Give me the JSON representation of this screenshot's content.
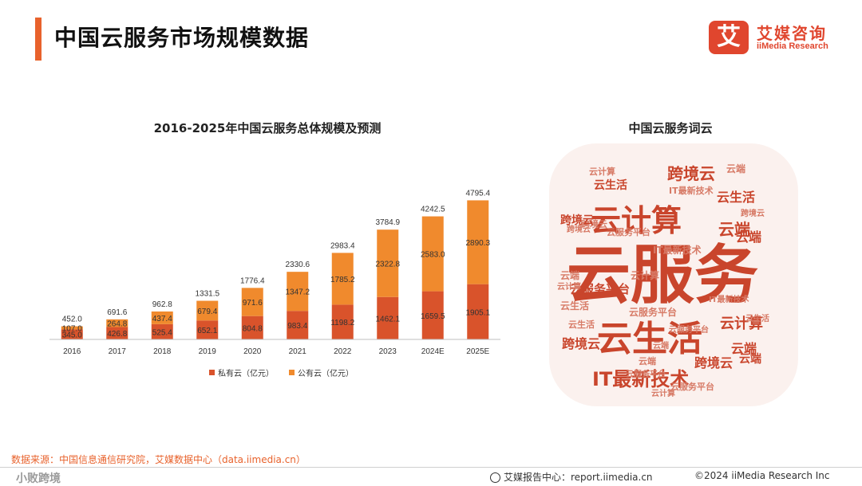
{
  "header": {
    "title": "中国云服务市场规模数据"
  },
  "logo": {
    "mark": "艾",
    "name_cn": "艾媒咨询",
    "name_en": "iiMedia Research"
  },
  "chart_title": "2016-2025年中国云服务总体规模及预测",
  "wordcloud_title": "中国云服务词云",
  "chart_data": {
    "type": "bar",
    "stacked": true,
    "title": "2016-2025年中国云服务总体规模及预测",
    "categories": [
      "2016",
      "2017",
      "2018",
      "2019",
      "2020",
      "2021",
      "2022",
      "2023",
      "2024E",
      "2025E"
    ],
    "series": [
      {
        "name": "私有云（亿元）",
        "color": "#d9532b",
        "values": [
          345.0,
          426.8,
          525.4,
          652.1,
          804.8,
          983.4,
          1198.2,
          1462.1,
          1659.5,
          1905.1
        ]
      },
      {
        "name": "公有云（亿元）",
        "color": "#f08a2d",
        "values": [
          107.0,
          264.8,
          437.4,
          679.4,
          971.6,
          1347.2,
          1785.2,
          2322.8,
          2583.0,
          2890.3
        ]
      }
    ],
    "totals": [
      452.0,
      691.6,
      962.8,
      1331.5,
      1776.4,
      2330.6,
      2983.4,
      3784.9,
      4242.5,
      4795.4
    ],
    "ylim": [
      0,
      5000
    ],
    "legend": "bottom"
  },
  "wordcloud": {
    "main_color": "#c9452c",
    "light_color": "#d77a66",
    "words": [
      {
        "text": "云服务",
        "size": 80
      },
      {
        "text": "云生活",
        "size": 44
      },
      {
        "text": "云计算",
        "size": 38
      },
      {
        "text": "IT最新技术",
        "size": 24
      },
      {
        "text": "跨境云",
        "size": 20
      },
      {
        "text": "云端",
        "size": 20
      },
      {
        "text": "云服务平台",
        "size": 15
      },
      {
        "text": "云计算",
        "size": 18
      },
      {
        "text": "云生活",
        "size": 16
      },
      {
        "text": "云端",
        "size": 16
      },
      {
        "text": "跨境云",
        "size": 16
      },
      {
        "text": "云计算",
        "size": 11
      },
      {
        "text": "云生活",
        "size": 14
      },
      {
        "text": "云端",
        "size": 12
      },
      {
        "text": "跨境云",
        "size": 11
      },
      {
        "text": "IT最新技术",
        "size": 12
      },
      {
        "text": "云服务平台",
        "size": 11
      },
      {
        "text": "云生活",
        "size": 11
      },
      {
        "text": "云端",
        "size": 11
      },
      {
        "text": "跨境云",
        "size": 10
      },
      {
        "text": "云计算",
        "size": 10
      },
      {
        "text": "云服务平台",
        "size": 10
      },
      {
        "text": "云端",
        "size": 16
      },
      {
        "text": "跨境云",
        "size": 14
      },
      {
        "text": "云生活",
        "size": 12
      },
      {
        "text": "云服务平台",
        "size": 12
      },
      {
        "text": "云端",
        "size": 14
      },
      {
        "text": "IT最新技术",
        "size": 11
      },
      {
        "text": "跨境云",
        "size": 16
      },
      {
        "text": "云计算",
        "size": 12
      },
      {
        "text": "云端",
        "size": 12
      },
      {
        "text": "IT最新技术",
        "size": 10
      },
      {
        "text": "云服务平台",
        "size": 11
      },
      {
        "text": "云生活",
        "size": 10
      },
      {
        "text": "跨境云",
        "size": 10
      },
      {
        "text": "云端",
        "size": 10
      },
      {
        "text": "云计算",
        "size": 10
      },
      {
        "text": "云服务平台",
        "size": 10
      }
    ]
  },
  "source": "数据来源：中国信息通信研究院，艾媒数据中心（data.iimedia.cn）",
  "footer": {
    "watermark": "小败跨境",
    "center": "艾媒报告中心：report.iimedia.cn",
    "right": "©2024  iiMedia Research  Inc"
  }
}
